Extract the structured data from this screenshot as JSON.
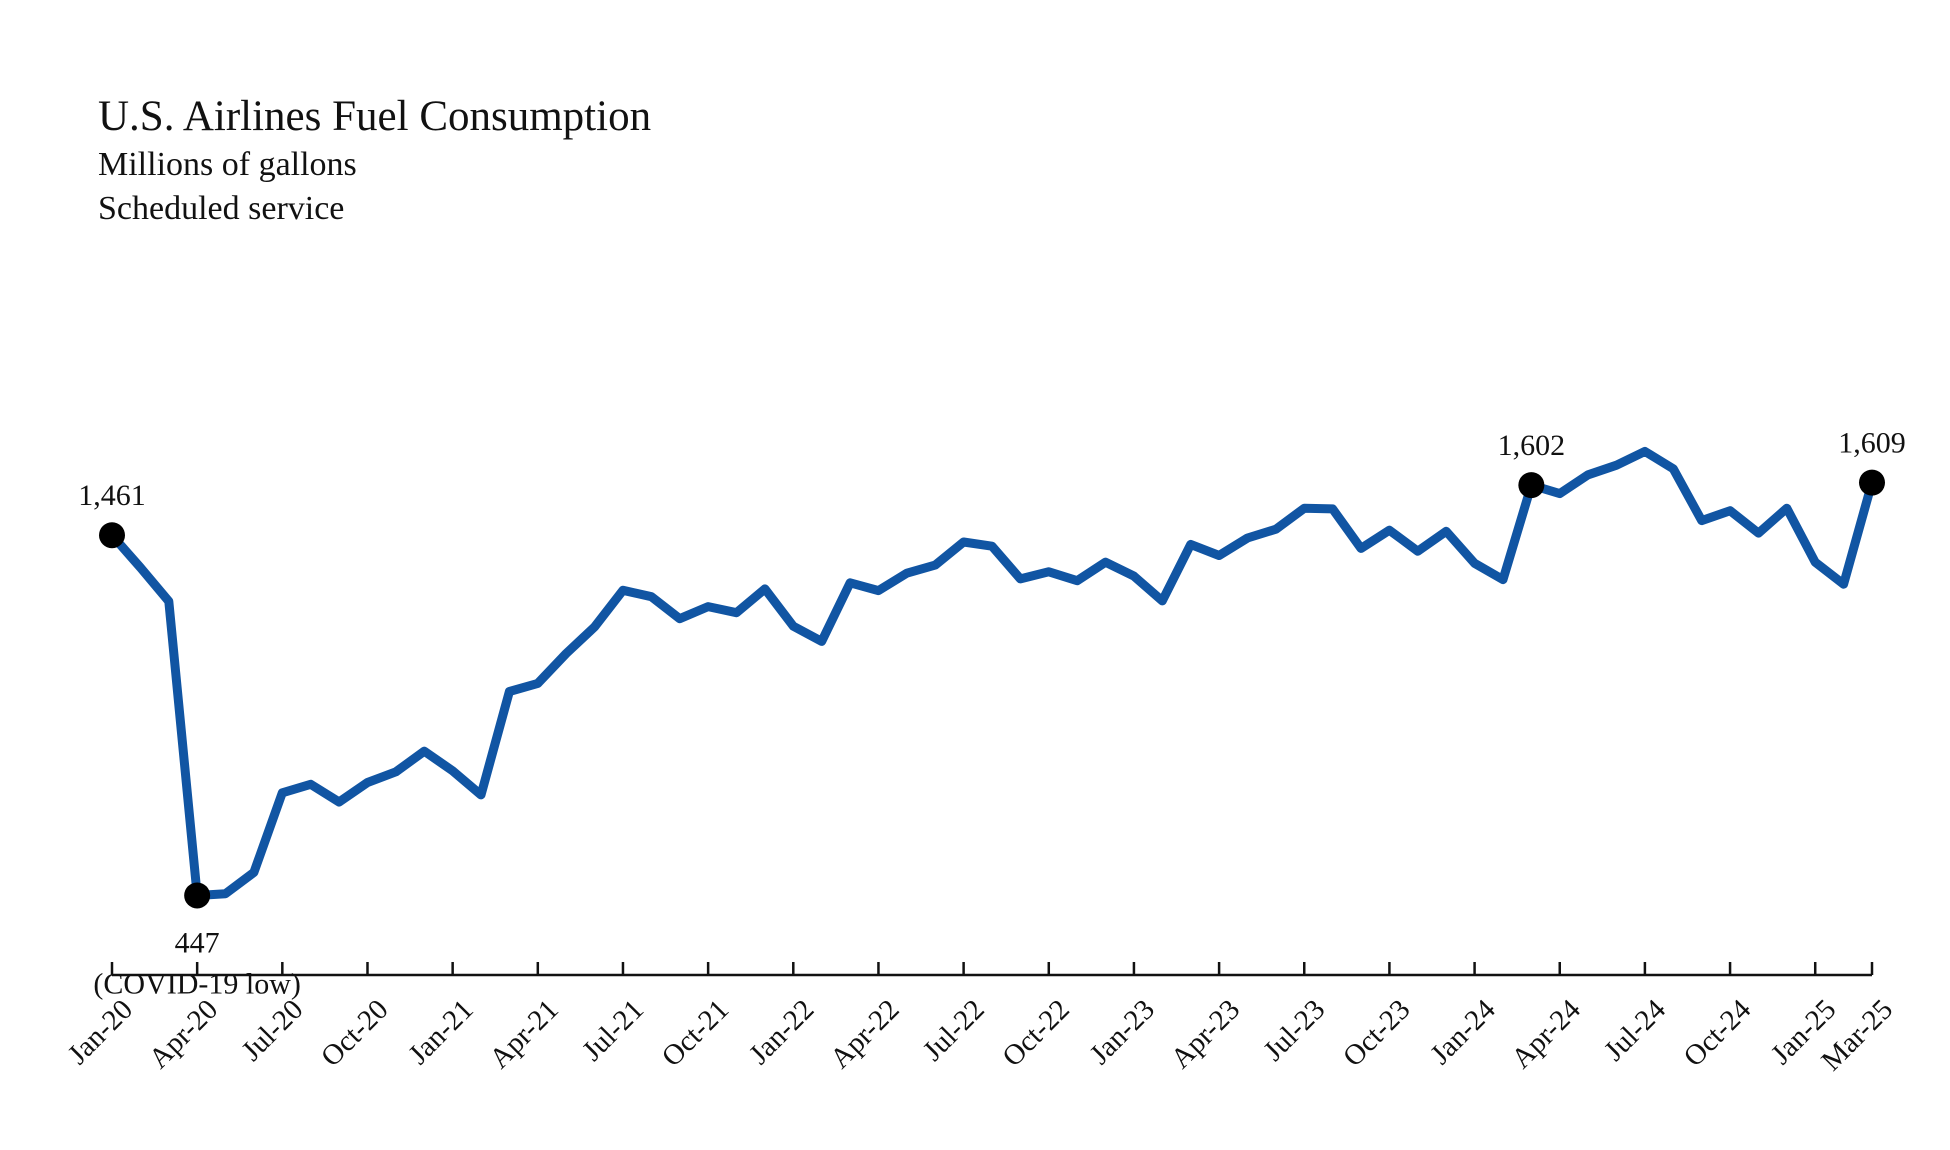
{
  "chart_data": {
    "type": "line",
    "title": "U.S. Airlines Fuel Consumption",
    "subtitle_lines": [
      "Millions of gallons",
      "Scheduled service"
    ],
    "xlabel": "",
    "ylabel": "",
    "ylim": [
      0,
      1800
    ],
    "grid": false,
    "legend": "none",
    "line_color": "#1155a3",
    "marker_color": "#000000",
    "x": [
      "Jan-20",
      "Feb-20",
      "Mar-20",
      "Apr-20",
      "May-20",
      "Jun-20",
      "Jul-20",
      "Aug-20",
      "Sep-20",
      "Oct-20",
      "Nov-20",
      "Dec-20",
      "Jan-21",
      "Feb-21",
      "Mar-21",
      "Apr-21",
      "May-21",
      "Jun-21",
      "Jul-21",
      "Aug-21",
      "Sep-21",
      "Oct-21",
      "Nov-21",
      "Dec-21",
      "Jan-22",
      "Feb-22",
      "Mar-22",
      "Apr-22",
      "May-22",
      "Jun-22",
      "Jul-22",
      "Aug-22",
      "Sep-22",
      "Oct-22",
      "Nov-22",
      "Dec-22",
      "Jan-23",
      "Feb-23",
      "Mar-23",
      "Apr-23",
      "May-23",
      "Jun-23",
      "Jul-23",
      "Aug-23",
      "Sep-23",
      "Oct-23",
      "Nov-23",
      "Dec-23",
      "Jan-24",
      "Feb-24",
      "Mar-24",
      "Apr-24",
      "May-24",
      "Jun-24",
      "Jul-24",
      "Aug-24",
      "Sep-24",
      "Oct-24",
      "Nov-24",
      "Dec-24",
      "Jan-25",
      "Feb-25",
      "Mar-25"
    ],
    "series": [
      {
        "values": [
          1461,
          1370,
          1275,
          447,
          452,
          512,
          736,
          760,
          710,
          765,
          795,
          853,
          798,
          730,
          1021,
          1044,
          1128,
          1203,
          1306,
          1288,
          1226,
          1260,
          1243,
          1310,
          1205,
          1162,
          1327,
          1305,
          1354,
          1377,
          1442,
          1430,
          1338,
          1358,
          1333,
          1385,
          1346,
          1276,
          1435,
          1404,
          1453,
          1478,
          1537,
          1535,
          1424,
          1475,
          1416,
          1472,
          1382,
          1336,
          1602,
          1578,
          1631,
          1658,
          1697,
          1648,
          1502,
          1530,
          1467,
          1537,
          1385,
          1323,
          1609
        ]
      }
    ],
    "tick_labels": [
      "Jan-20",
      "Apr-20",
      "Jul-20",
      "Oct-20",
      "Jan-21",
      "Apr-21",
      "Jul-21",
      "Oct-21",
      "Jan-22",
      "Apr-22",
      "Jul-22",
      "Oct-22",
      "Jan-23",
      "Apr-23",
      "Jul-23",
      "Oct-23",
      "Jan-24",
      "Apr-24",
      "Jul-24",
      "Oct-24",
      "Jan-25",
      "Mar-25"
    ],
    "annotations": [
      {
        "x": "Jan-20",
        "value": 1461,
        "text": "1,461",
        "position": "above"
      },
      {
        "x": "Apr-20",
        "value": 447,
        "text": "447",
        "text2": "(COVID-19 low)",
        "position": "below"
      },
      {
        "x": "Mar-24",
        "value": 1602,
        "text": "1,602",
        "position": "above"
      },
      {
        "x": "Mar-25",
        "value": 1609,
        "text": "1,609",
        "position": "above"
      }
    ]
  }
}
